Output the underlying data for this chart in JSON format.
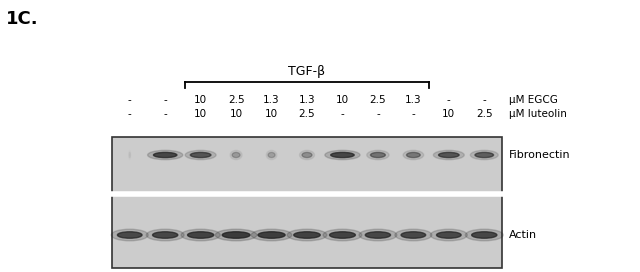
{
  "figure_label": "1C.",
  "tgf_beta_label": "TGF-β",
  "egcg_label": "μM EGCG",
  "luteolin_label": "μM luteolin",
  "egcg_values": [
    "-",
    "-",
    "10",
    "2.5",
    "1.3",
    "1.3",
    "10",
    "2.5",
    "1.3",
    "-",
    "-"
  ],
  "luteolin_values": [
    "-",
    "-",
    "10",
    "10",
    "10",
    "2.5",
    "-",
    "-",
    "-",
    "10",
    "2.5"
  ],
  "n_lanes": 11,
  "fibronectin_label": "Fibronectin",
  "actin_label": "Actin",
  "gel_bg": "#cccccc",
  "band_dark": "#222222",
  "figsize": [
    6.4,
    2.72
  ],
  "dpi": 100,
  "fibronectin_intensities": [
    0.05,
    0.82,
    0.72,
    0.28,
    0.25,
    0.35,
    0.82,
    0.52,
    0.48,
    0.72,
    0.65
  ],
  "actin_intensities": [
    0.8,
    0.82,
    0.85,
    0.9,
    0.88,
    0.86,
    0.84,
    0.82,
    0.8,
    0.8,
    0.82
  ]
}
